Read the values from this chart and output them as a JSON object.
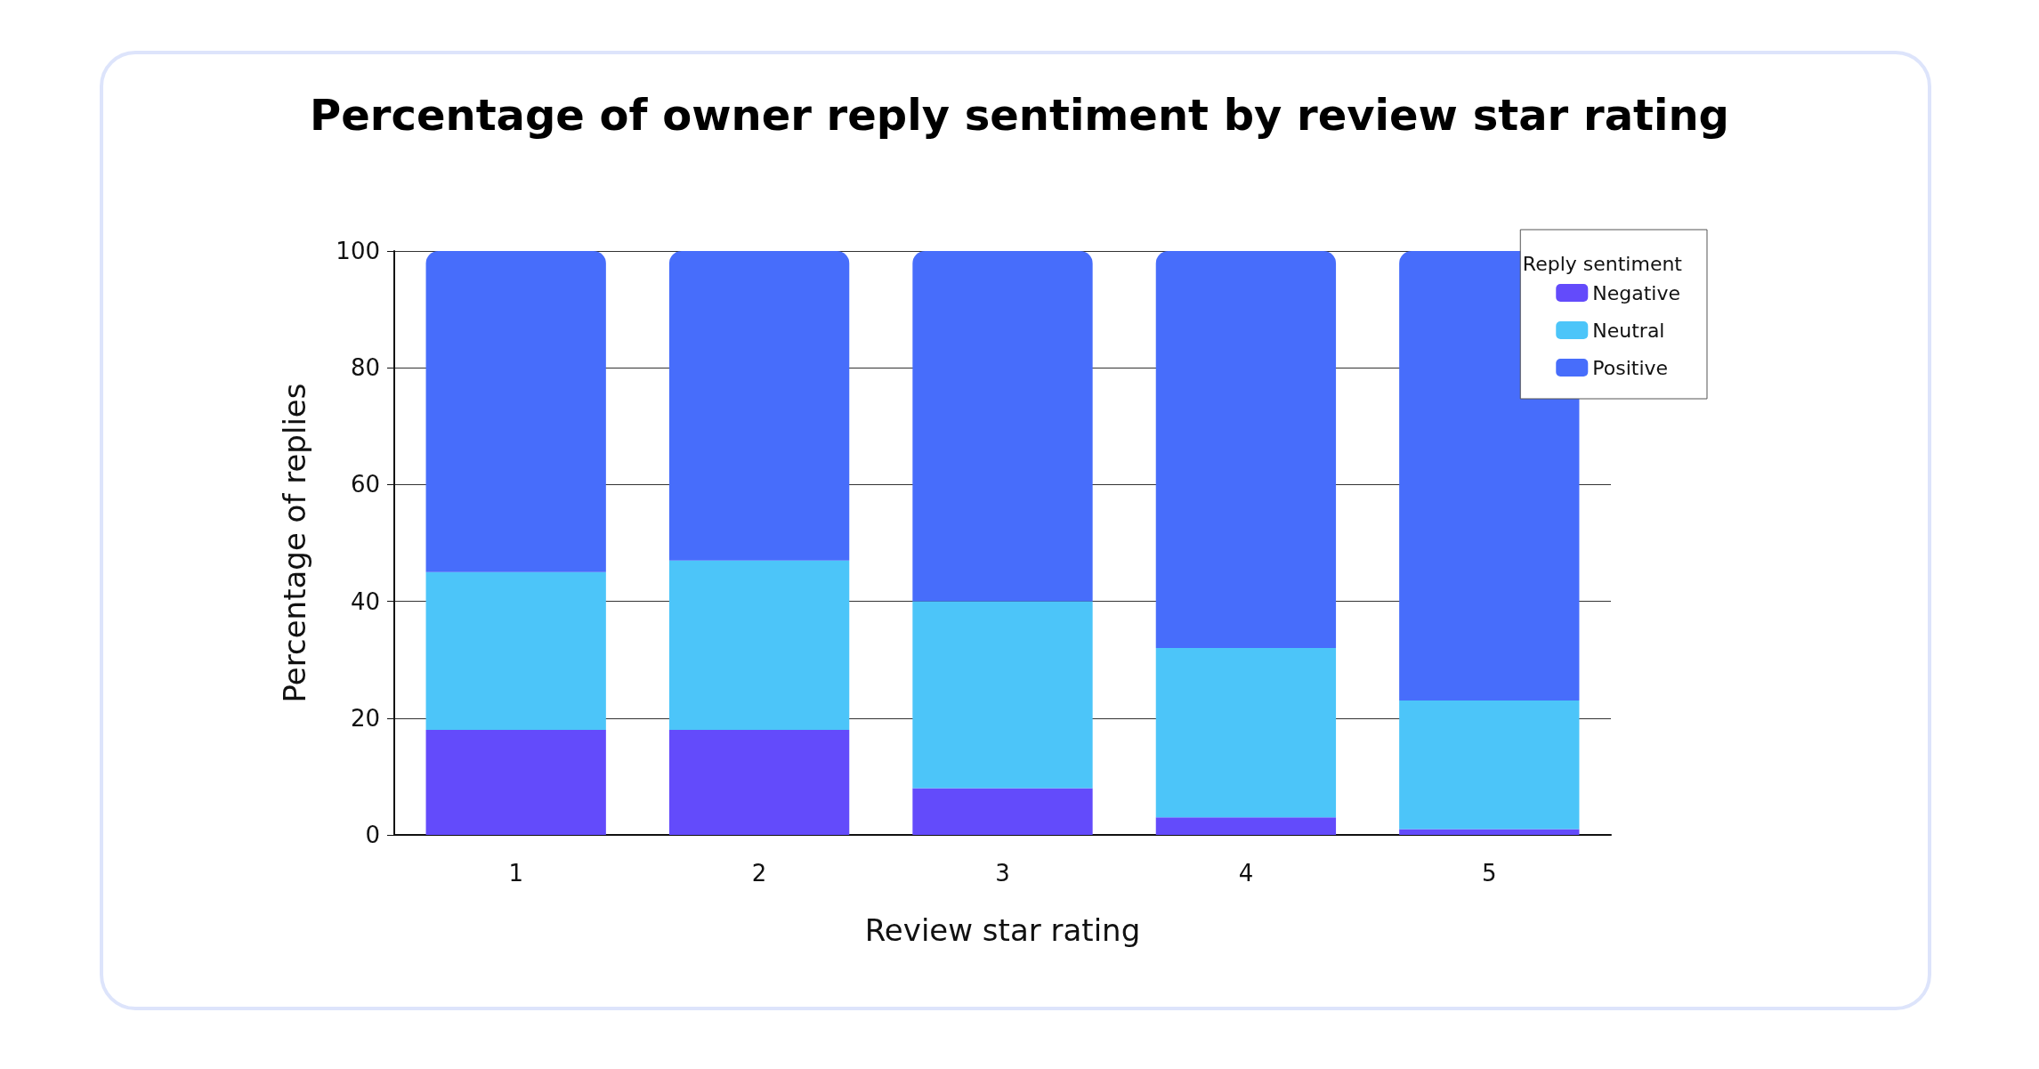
{
  "chart_data": {
    "type": "bar",
    "title": "Percentage of owner reply sentiment by review star rating",
    "xlabel": "Review star rating",
    "ylabel": "Percentage of replies",
    "legend_title": "Reply sentiment",
    "categories": [
      "1",
      "2",
      "3",
      "4",
      "5"
    ],
    "stacked": true,
    "series": [
      {
        "name": "Negative",
        "color": "#634bfb",
        "values": [
          18,
          18,
          8,
          3,
          1
        ]
      },
      {
        "name": "Neutral",
        "color": "#4cc5f9",
        "values": [
          27,
          29,
          32,
          29,
          22
        ]
      },
      {
        "name": "Positive",
        "color": "#476dfb",
        "values": [
          55,
          53,
          60,
          68,
          77
        ]
      }
    ],
    "ylim": [
      0,
      100
    ],
    "yticks": [
      0,
      20,
      40,
      60,
      80,
      100
    ],
    "grid": "y",
    "legend": "top right"
  }
}
